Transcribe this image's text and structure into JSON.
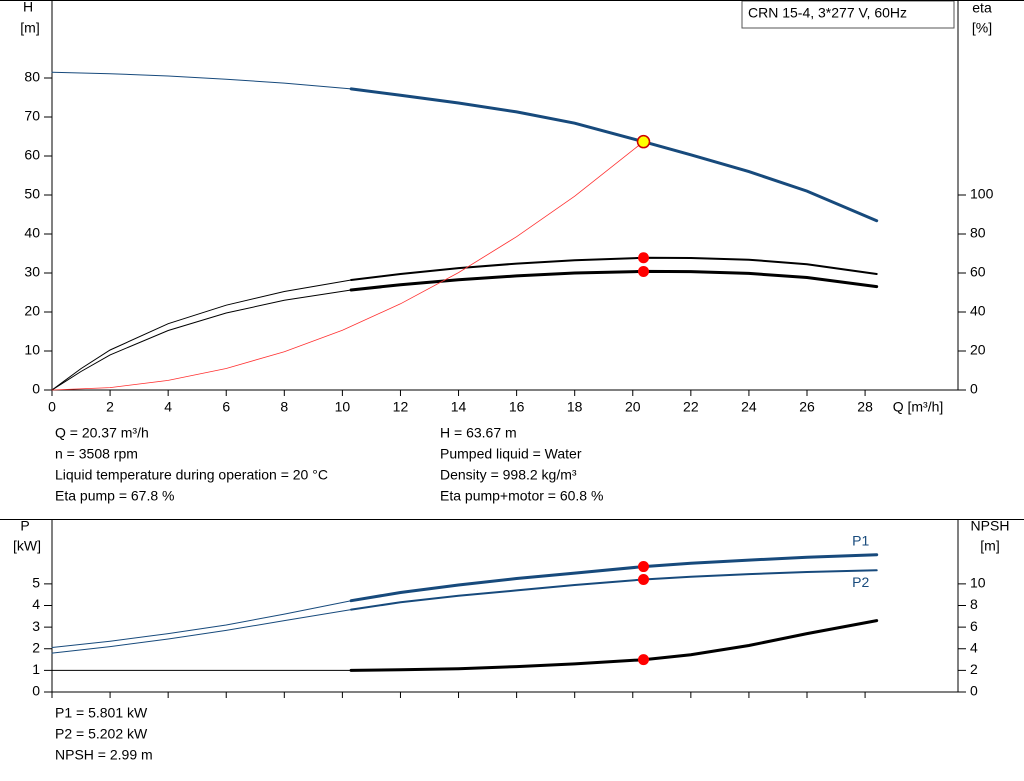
{
  "chart_data": [
    {
      "type": "line",
      "title": "CRN 15-4, 3*277 V, 60Hz",
      "y_label": "H",
      "y_unit": "[m]",
      "y2_label": "eta",
      "y2_unit": "[%]",
      "x_label": "Q [m³/h]",
      "xlim": [
        0,
        31.2
      ],
      "xticks": [
        0,
        2,
        4,
        6,
        8,
        10,
        12,
        14,
        16,
        18,
        20,
        22,
        24,
        26,
        28
      ],
      "ylim": [
        0,
        100
      ],
      "yticks": [
        0,
        10,
        20,
        30,
        40,
        50,
        60,
        70,
        80
      ],
      "y2lim": [
        0,
        200
      ],
      "y2ticks": [
        0,
        20,
        40,
        60,
        80,
        100
      ],
      "series": [
        {
          "color": "#174a7c",
          "width": 1,
          "axis": "y",
          "x": [
            0,
            2,
            4,
            6,
            8,
            10.3
          ],
          "values": [
            81.5,
            81.1,
            80.5,
            79.7,
            78.7,
            77.2
          ]
        },
        {
          "color": "#174a7c",
          "width": 3,
          "axis": "y",
          "x": [
            10.3,
            12,
            14,
            16,
            18,
            20.37,
            22,
            24,
            26,
            28.4
          ],
          "values": [
            77.2,
            75.6,
            73.6,
            71.3,
            68.4,
            63.67,
            60.3,
            56.0,
            51.0,
            43.4
          ]
        },
        {
          "color": "#000000",
          "width": 1,
          "axis": "y2",
          "x": [
            0,
            1,
            2,
            4,
            6,
            8,
            10.3
          ],
          "values": [
            0,
            11,
            20.5,
            34,
            43.5,
            50.5,
            56.4
          ]
        },
        {
          "color": "#000000",
          "width": 2,
          "axis": "y2",
          "x": [
            10.3,
            12,
            14,
            16,
            18,
            20.37,
            22,
            24,
            26,
            28.4
          ],
          "values": [
            56.4,
            59.5,
            62.5,
            64.8,
            66.5,
            67.8,
            67.7,
            66.8,
            64.5,
            59.5
          ]
        },
        {
          "color": "#000000",
          "width": 1,
          "axis": "y2",
          "x": [
            0,
            1,
            2,
            4,
            6,
            8,
            10.3
          ],
          "values": [
            0,
            9.5,
            18,
            30.5,
            39.5,
            46,
            51.3
          ]
        },
        {
          "color": "#000000",
          "width": 3,
          "axis": "y2",
          "x": [
            10.3,
            12,
            14,
            16,
            18,
            20.37,
            22,
            24,
            26,
            28.4
          ],
          "values": [
            51.3,
            54,
            56.5,
            58.5,
            60,
            60.8,
            60.7,
            59.8,
            57.7,
            53
          ]
        },
        {
          "color": "#ff3030",
          "width": 0.8,
          "axis": "y",
          "x": [
            0,
            2,
            4,
            6,
            8,
            10,
            12,
            14,
            16,
            18,
            20.37
          ],
          "values": [
            0,
            0.61,
            2.46,
            5.52,
            9.82,
            15.34,
            22.1,
            30.1,
            39.3,
            49.7,
            63.67
          ]
        }
      ],
      "markers": [
        {
          "x": 20.37,
          "value": 67.8,
          "axis": "y2",
          "color": "#ff0000"
        },
        {
          "x": 20.37,
          "value": 60.8,
          "axis": "y2",
          "color": "#ff0000"
        },
        {
          "x": 20.37,
          "value": 63.67,
          "axis": "y",
          "color": "#ffff00"
        }
      ],
      "info_left": [
        "Q = 20.37 m³/h",
        "n = 3508 rpm",
        "Liquid temperature during operation = 20 °C",
        "Eta pump = 67.8 %"
      ],
      "info_right": [
        "H = 63.67 m",
        "Pumped liquid = Water",
        "Density = 998.2 kg/m³",
        "Eta pump+motor = 60.8 %"
      ]
    },
    {
      "type": "line",
      "y_label": "P",
      "y_unit": "[kW]",
      "y2_label": "NPSH",
      "y2_unit": "[m]",
      "xlim": [
        0,
        31.2
      ],
      "ylim": [
        0,
        8
      ],
      "yticks": [
        0,
        1,
        2,
        3,
        4,
        5
      ],
      "y2lim": [
        0,
        16
      ],
      "y2ticks": [
        0,
        2,
        4,
        6,
        8,
        10
      ],
      "series": [
        {
          "color": "#174a7c",
          "width": 1,
          "axis": "y",
          "x": [
            0,
            2,
            4,
            6,
            8,
            10.3
          ],
          "values": [
            2.06,
            2.35,
            2.7,
            3.1,
            3.6,
            4.22
          ]
        },
        {
          "name": "P1",
          "color": "#174a7c",
          "width": 3,
          "axis": "y",
          "x": [
            10.3,
            12,
            14,
            16,
            18,
            20.37,
            22,
            24,
            26,
            28.4
          ],
          "values": [
            4.22,
            4.6,
            4.95,
            5.25,
            5.5,
            5.801,
            5.95,
            6.1,
            6.23,
            6.35
          ]
        },
        {
          "color": "#174a7c",
          "width": 1,
          "axis": "y",
          "x": [
            0,
            2,
            4,
            6,
            8,
            10.3
          ],
          "values": [
            1.8,
            2.1,
            2.45,
            2.85,
            3.3,
            3.81
          ]
        },
        {
          "name": "P2",
          "color": "#174a7c",
          "width": 2,
          "axis": "y",
          "x": [
            10.3,
            12,
            14,
            16,
            18,
            20.37,
            22,
            24,
            26,
            28.4
          ],
          "values": [
            3.81,
            4.15,
            4.45,
            4.7,
            4.95,
            5.202,
            5.33,
            5.45,
            5.55,
            5.63
          ]
        },
        {
          "color": "#000000",
          "width": 1,
          "axis": "y2",
          "x": [
            0,
            10.3
          ],
          "values": [
            2.0,
            2.0
          ]
        },
        {
          "color": "#000000",
          "width": 3,
          "axis": "y2",
          "x": [
            10.3,
            12,
            14,
            16,
            18,
            20.37,
            22,
            24,
            26,
            28.4
          ],
          "values": [
            2.0,
            2.05,
            2.15,
            2.35,
            2.6,
            2.99,
            3.45,
            4.3,
            5.4,
            6.6
          ]
        }
      ],
      "markers": [
        {
          "x": 20.37,
          "value": 5.801,
          "axis": "y",
          "color": "#ff0000"
        },
        {
          "x": 20.37,
          "value": 5.202,
          "axis": "y",
          "color": "#ff0000"
        },
        {
          "x": 20.37,
          "value": 2.99,
          "axis": "y2",
          "color": "#ff0000"
        }
      ],
      "info_left": [
        "P1 = 5.801 kW",
        "P2 = 5.202 kW",
        "NPSH = 2.99 m"
      ]
    }
  ]
}
